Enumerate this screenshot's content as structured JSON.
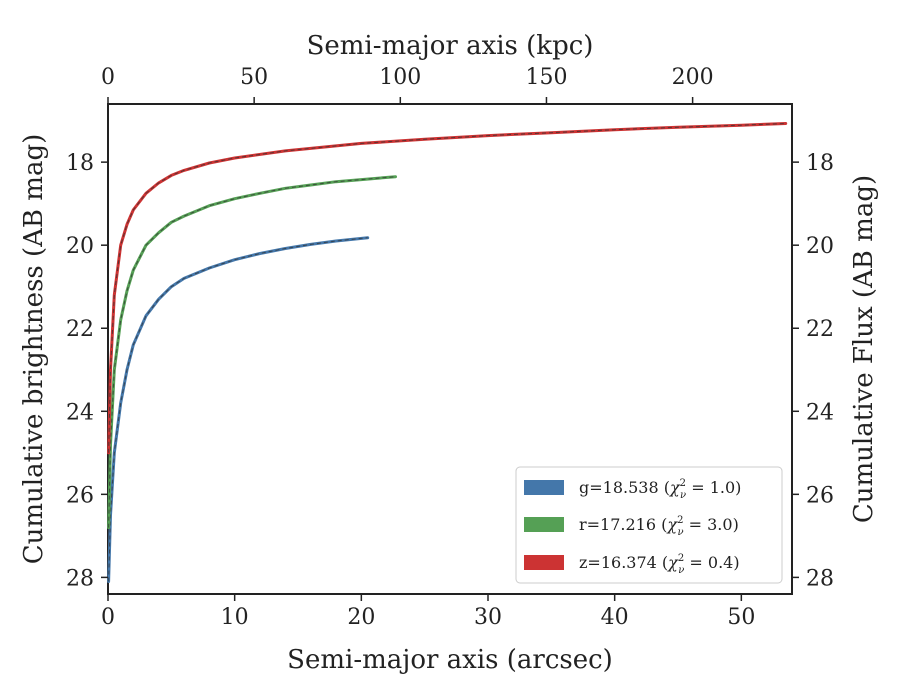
{
  "chart_data": {
    "type": "line",
    "xlabel": "Semi-major axis (arcsec)",
    "top_xlabel": "Semi-major axis (kpc)",
    "ylabel": "Cumulative brightness (AB mag)",
    "right_ylabel": "Cumulative Flux (AB mag)",
    "xlim": [
      0,
      54
    ],
    "top_xlim": [
      0,
      234
    ],
    "ylim": [
      28.4,
      16.6
    ],
    "y_inverted": true,
    "x_ticks": [
      "0",
      "10",
      "20",
      "30",
      "40",
      "50"
    ],
    "top_x_ticks": [
      "0",
      "50",
      "100",
      "150",
      "200"
    ],
    "y_ticks": [
      "18",
      "20",
      "22",
      "24",
      "26",
      "28"
    ],
    "grid": false,
    "legend_position": "lower-right",
    "series": [
      {
        "name": "g=18.538 (χ²ᵥ = 1.0)",
        "legend_main": "g=18.538 (",
        "legend_chi": "χ",
        "legend_sup": "2",
        "legend_sub": "ν",
        "legend_tail": " = 1.0)",
        "color": "#4477aa",
        "x": [
          0.05,
          0.2,
          0.5,
          1.0,
          1.5,
          2.0,
          3.0,
          4.0,
          5.0,
          6.0,
          8.0,
          10.0,
          12.0,
          14.0,
          16.0,
          18.0,
          20.5
        ],
        "y": [
          28.1,
          26.5,
          25.0,
          23.8,
          23.0,
          22.4,
          21.7,
          21.3,
          21.0,
          20.8,
          20.55,
          20.35,
          20.2,
          20.08,
          19.98,
          19.9,
          19.82
        ]
      },
      {
        "name": "r=17.216 (χ²ᵥ = 3.0)",
        "legend_main": "r=17.216 (",
        "legend_chi": "χ",
        "legend_sup": "2",
        "legend_sub": "ν",
        "legend_tail": " = 3.0)",
        "color": "#55a055",
        "x": [
          0.05,
          0.2,
          0.5,
          1.0,
          1.5,
          2.0,
          3.0,
          4.0,
          5.0,
          6.0,
          8.0,
          10.0,
          12.0,
          14.0,
          16.0,
          18.0,
          20.0,
          22.7
        ],
        "y": [
          26.8,
          24.8,
          23.0,
          21.8,
          21.1,
          20.6,
          20.0,
          19.7,
          19.45,
          19.3,
          19.05,
          18.88,
          18.75,
          18.63,
          18.55,
          18.47,
          18.42,
          18.35
        ]
      },
      {
        "name": "z=16.374 (χ²ᵥ = 0.4)",
        "legend_main": "z=16.374 (",
        "legend_chi": "χ",
        "legend_sup": "2",
        "legend_sub": "ν",
        "legend_tail": " = 0.4)",
        "color": "#cc3333",
        "x": [
          0.05,
          0.2,
          0.5,
          1.0,
          1.5,
          2.0,
          3.0,
          4.0,
          5.0,
          6.0,
          8.0,
          10.0,
          14.0,
          20.0,
          25.0,
          30.0,
          35.0,
          40.0,
          45.0,
          50.0,
          53.5
        ],
        "y": [
          25.0,
          23.0,
          21.2,
          20.0,
          19.5,
          19.15,
          18.75,
          18.5,
          18.32,
          18.2,
          18.02,
          17.9,
          17.73,
          17.55,
          17.45,
          17.36,
          17.29,
          17.22,
          17.16,
          17.11,
          17.07
        ]
      }
    ]
  }
}
